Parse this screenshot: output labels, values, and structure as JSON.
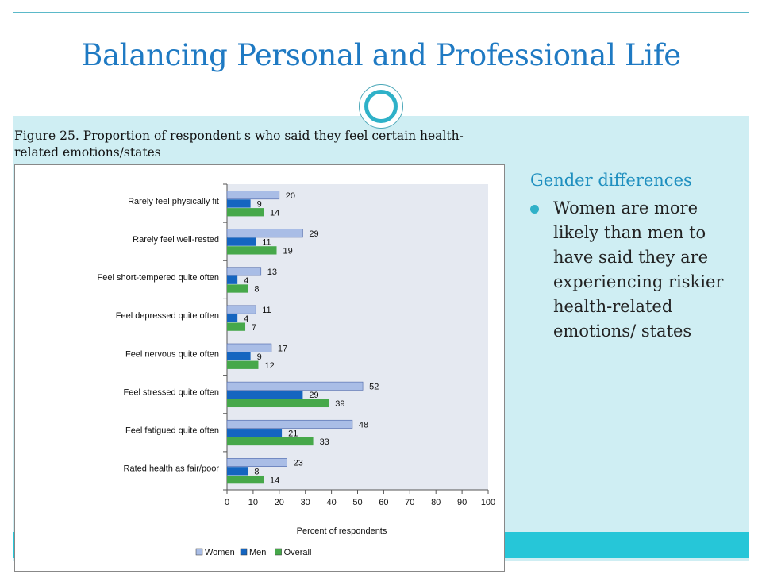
{
  "slide": {
    "title": "Balancing Personal and Professional Life",
    "caption_line1": "Figure 25.  Proportion of respondent s who said they feel certain health-",
    "caption_line2": "related emotions/states",
    "subheading": "Gender differences",
    "bullets": [
      "Women are more likely than men to have said they are experiencing riskier health-related emotions/ states"
    ]
  },
  "colors": {
    "title": "#1f7ac3",
    "panel": "#cfeef3",
    "band": "#26c6d8",
    "accent": "#2fb1c8",
    "plot_bg": "#e5e9f1",
    "women": "#a9bde6",
    "men": "#1565c0",
    "overall": "#46a84a"
  },
  "chart_data": {
    "type": "bar",
    "orientation": "horizontal",
    "categories": [
      "Rarely feel physically fit",
      "Rarely feel well-rested",
      "Feel short-tempered quite often",
      "Feel depressed quite often",
      "Feel nervous quite often",
      "Feel stressed quite often",
      "Feel fatigued quite often",
      "Rated health as fair/poor"
    ],
    "series": [
      {
        "name": "Women",
        "values": [
          20,
          29,
          13,
          11,
          17,
          52,
          48,
          23
        ]
      },
      {
        "name": "Men",
        "values": [
          9,
          11,
          4,
          4,
          9,
          29,
          21,
          8
        ]
      },
      {
        "name": "Overall",
        "values": [
          14,
          19,
          8,
          7,
          12,
          39,
          33,
          14
        ]
      }
    ],
    "xlabel": "Percent of respondents",
    "ylabel": "",
    "xlim": [
      0,
      100
    ],
    "xticks": [
      "0",
      "10",
      "20",
      "30",
      "40",
      "50",
      "60",
      "70",
      "80",
      "90",
      "100"
    ],
    "grid": false,
    "legend": "bottom",
    "data_labels": true
  }
}
